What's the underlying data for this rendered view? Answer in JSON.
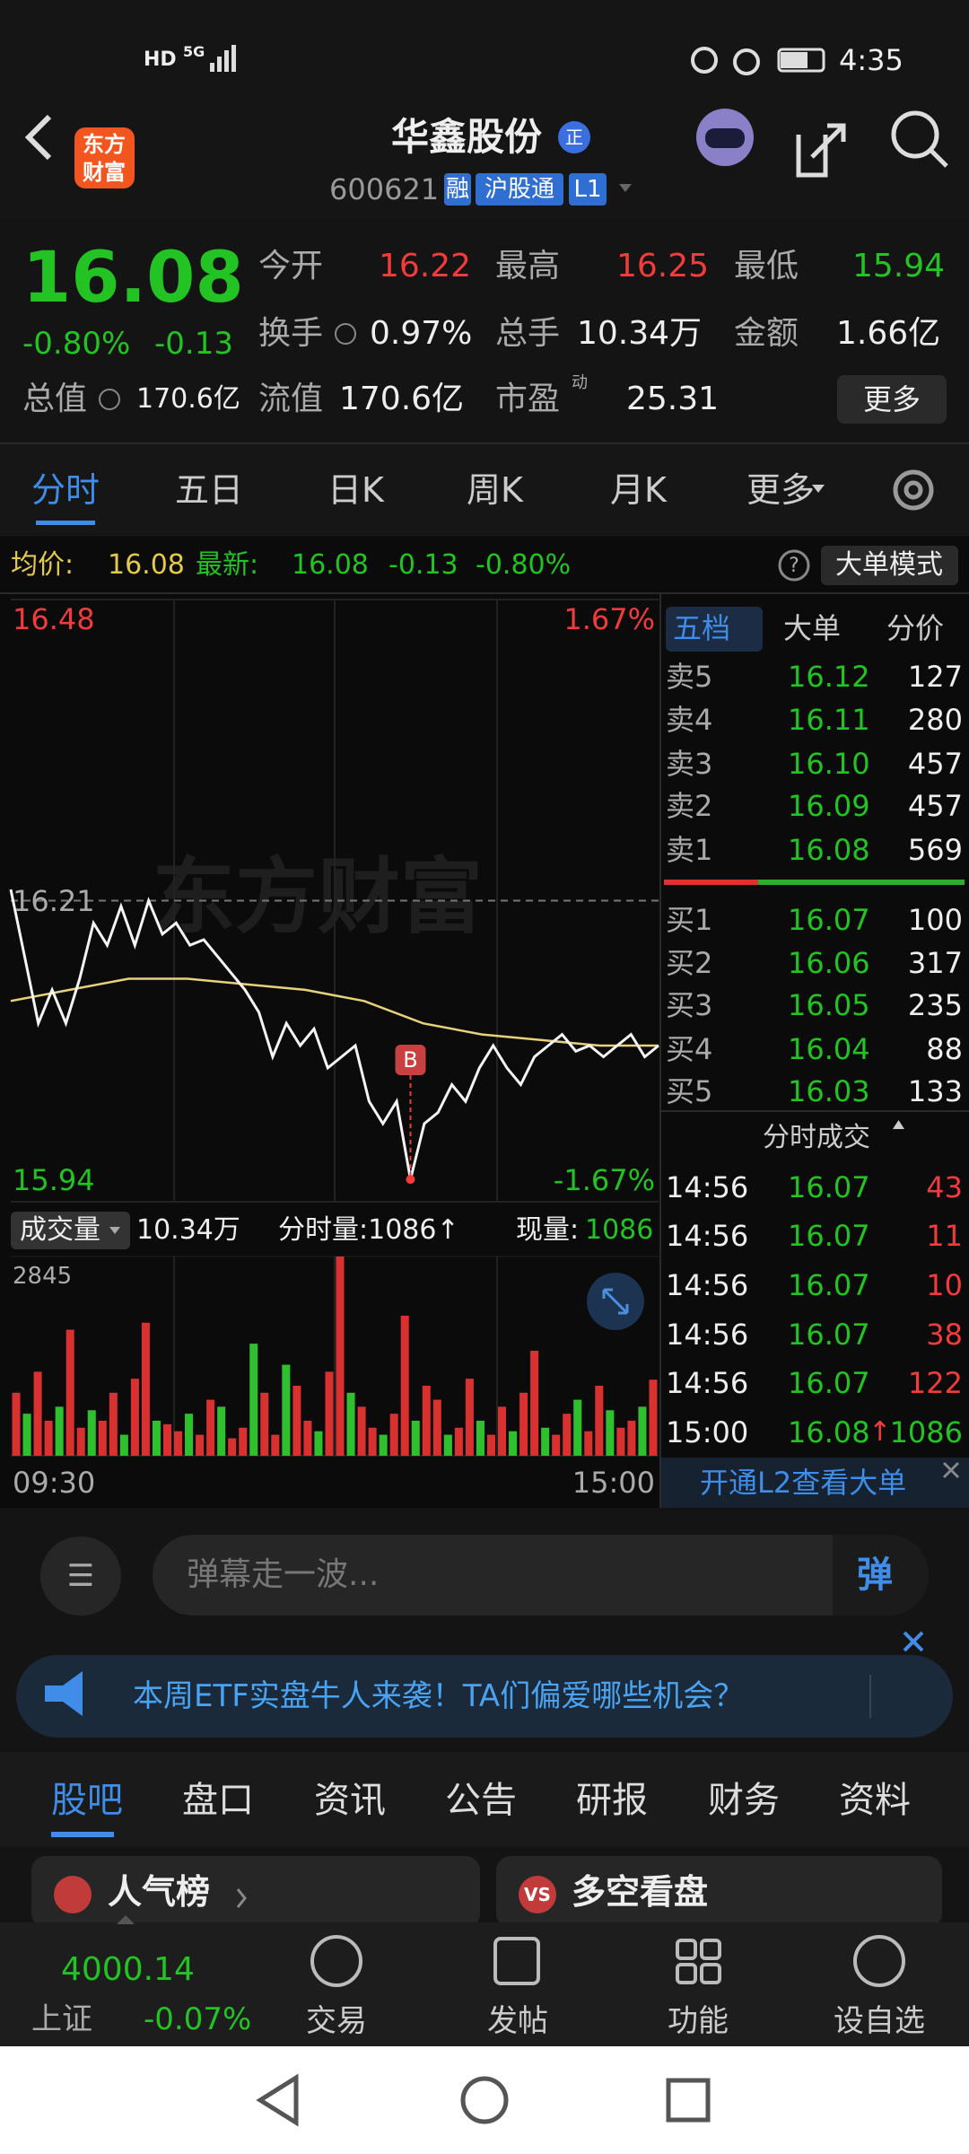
{
  "status_bar": {
    "hd": "HD",
    "network": "5G",
    "time": "4:35"
  },
  "header": {
    "logo": [
      "东方",
      "财富"
    ],
    "title": "华鑫股份",
    "badge": "正",
    "code": "600621",
    "tags": [
      "融",
      "沪股通",
      "L1"
    ]
  },
  "quote": {
    "price": "16.08",
    "change_pct": "-0.80%",
    "change": "-0.13",
    "stats": [
      {
        "label": "今开",
        "value": "16.22"
      },
      {
        "label": "最高",
        "value": "16.25"
      },
      {
        "label": "最低",
        "value": "15.94"
      },
      {
        "label": "换手",
        "value": "0.97%"
      },
      {
        "label": "总手",
        "value": "10.34万"
      },
      {
        "label": "金额",
        "value": "1.66亿"
      },
      {
        "label": "总值",
        "value": "170.6亿"
      },
      {
        "label": "流值",
        "value": "170.6亿"
      },
      {
        "label": "市盈",
        "sup": "动",
        "value": "25.31"
      }
    ],
    "more": "更多"
  },
  "period_tabs": [
    "分时",
    "五日",
    "日K",
    "周K",
    "月K",
    "更多"
  ],
  "summary": {
    "avg_label": "均价:",
    "avg": "16.08",
    "last_label": "最新:",
    "last": "16.08",
    "change": "-0.13",
    "change_pct": "-0.80%",
    "mode_button": "大单模式"
  },
  "intraday": {
    "watermark": "东方财富",
    "ylim": [
      15.94,
      16.48
    ],
    "yticks": [
      15.94,
      16.21,
      16.48
    ],
    "pct_labels": [
      "-1.67%",
      "1.67%"
    ],
    "marker": "B",
    "price": [
      16.22,
      16.16,
      16.1,
      16.13,
      16.1,
      16.14,
      16.19,
      16.17,
      16.205,
      16.17,
      16.21,
      16.18,
      16.19,
      16.17,
      16.175,
      16.16,
      16.145,
      16.13,
      16.11,
      16.07,
      16.1,
      16.08,
      16.095,
      16.06,
      16.07,
      16.08,
      16.03,
      16.01,
      16.03,
      15.96,
      16.01,
      16.02,
      16.045,
      16.03,
      16.06,
      16.08,
      16.06,
      16.045,
      16.07,
      16.08,
      16.09,
      16.075,
      16.08,
      16.07,
      16.08,
      16.09,
      16.07,
      16.08
    ],
    "avg": [
      16.12,
      16.13,
      16.14,
      16.14,
      16.135,
      16.13,
      16.12,
      16.1,
      16.09,
      16.085,
      16.08,
      16.08
    ],
    "volume_panel": {
      "label": "成交量",
      "total": "10.34万",
      "tick_volume": "分时量:1086↑",
      "current_label": "现量:",
      "current": "1086",
      "vlim": [
        0,
        2845
      ],
      "vticks": [
        2845
      ],
      "values": [
        900,
        600,
        1200,
        500,
        700,
        1800,
        400,
        650,
        500,
        900,
        300,
        1100,
        1900,
        500,
        450,
        350,
        600,
        300,
        800,
        700,
        250,
        400,
        1600,
        900,
        300,
        1300,
        1000,
        500,
        350,
        1200,
        2845,
        900,
        700,
        400,
        300,
        600,
        2000,
        500,
        1000,
        800,
        300,
        400,
        1100,
        500,
        300,
        700,
        350,
        900,
        1500,
        400,
        300,
        600,
        800,
        350,
        1000,
        650,
        400,
        500,
        700,
        1086
      ]
    },
    "time_labels": [
      "09:30",
      "15:00"
    ]
  },
  "order_book": {
    "tabs": [
      "五档",
      "大单",
      "分价"
    ],
    "asks": [
      [
        "卖5",
        "16.12",
        "127"
      ],
      [
        "卖4",
        "16.11",
        "280"
      ],
      [
        "卖3",
        "16.10",
        "457"
      ],
      [
        "卖2",
        "16.09",
        "457"
      ],
      [
        "卖1",
        "16.08",
        "569"
      ]
    ],
    "bids": [
      [
        "买1",
        "16.07",
        "100"
      ],
      [
        "买2",
        "16.06",
        "317"
      ],
      [
        "买3",
        "16.05",
        "235"
      ],
      [
        "买4",
        "16.04",
        "88"
      ],
      [
        "买5",
        "16.03",
        "133"
      ]
    ]
  },
  "trades": {
    "title": "分时成交",
    "rows": [
      [
        "14:56",
        "16.07",
        "43"
      ],
      [
        "14:56",
        "16.07",
        "11"
      ],
      [
        "14:56",
        "16.07",
        "10"
      ],
      [
        "14:56",
        "16.07",
        "38"
      ],
      [
        "14:56",
        "16.07",
        "122"
      ]
    ],
    "last": {
      "time": "15:00",
      "price": "16.08",
      "arrow": "↑",
      "volume": "1086"
    }
  },
  "l2_promo": "开通L2查看大单",
  "danmaku": {
    "placeholder": "弹幕走一波...",
    "button": "弹"
  },
  "banner": "本周ETF实盘牛人来袭！TA们偏爱哪些机会？",
  "section_tabs": [
    "股吧",
    "盘口",
    "资讯",
    "公告",
    "研报",
    "财务",
    "资料"
  ],
  "cards": [
    {
      "title": "人气榜"
    },
    {
      "icon": "VS",
      "title": "多空看盘"
    }
  ],
  "bottom_nav": {
    "index": {
      "value": "4000.14",
      "name": "上证",
      "change": "-0.07%"
    },
    "items": [
      "交易",
      "发帖",
      "功能",
      "设自选"
    ]
  }
}
